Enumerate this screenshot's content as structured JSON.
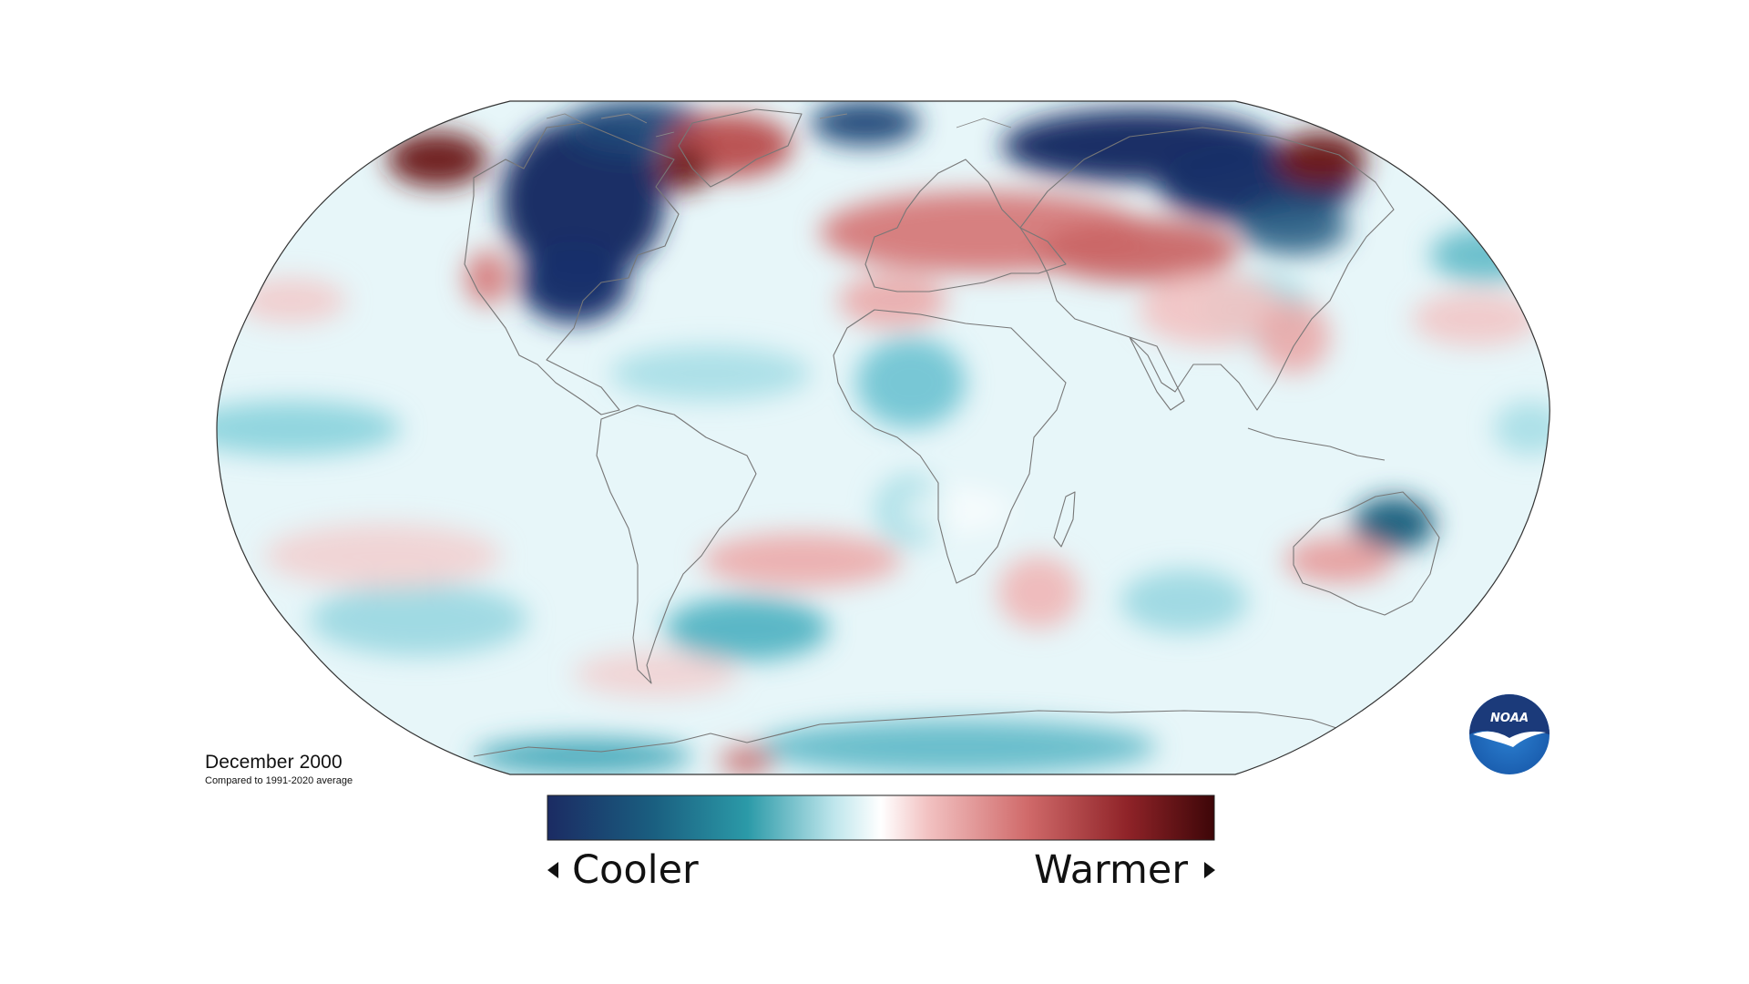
{
  "caption": {
    "period": "December 2000",
    "baseline": "Compared to 1991-2020 average"
  },
  "legend": {
    "low_label": "Cooler",
    "high_label": "Warmer",
    "low_icon": "triangle-left-icon",
    "high_icon": "triangle-right-icon",
    "colors": [
      "#1b2b63",
      "#1a5f80",
      "#2b9aa8",
      "#bfe6ec",
      "#ffffff",
      "#f2c2c2",
      "#d06a6a",
      "#8f2328",
      "#3d0608"
    ]
  },
  "logo": {
    "text": "NOAA",
    "colors": {
      "top": "#1b3a7a",
      "bottom": "#1f7fce",
      "bird": "#ffffff"
    }
  },
  "map": {
    "projection": "Robinson",
    "ocean_color": "#e4f5f8",
    "outline_color": "#333333",
    "coastline_color": "#777777"
  }
}
